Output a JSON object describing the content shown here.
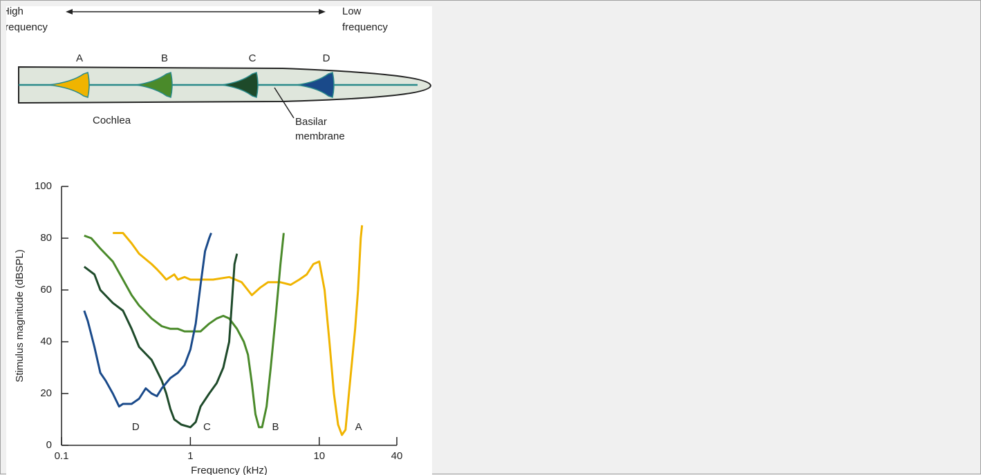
{
  "diagram": {
    "high_label": [
      "High",
      "frequency"
    ],
    "low_label": [
      "Low",
      "frequency"
    ],
    "positions": [
      "A",
      "B",
      "C",
      "D"
    ],
    "cochlea_label": "Cochlea",
    "membrane_label": [
      "Basilar",
      "membrane"
    ]
  },
  "chart_data": {
    "type": "line",
    "xlabel": "Frequency (kHz)",
    "ylabel": "Stimulus magnitude (dBSPL)",
    "xscale": "log",
    "xlim": [
      0.1,
      40
    ],
    "xticks": [
      0.1,
      1,
      10,
      40
    ],
    "ylim": [
      0,
      100
    ],
    "yticks": [
      0,
      20,
      40,
      60,
      80,
      100
    ],
    "series": [
      {
        "name": "A",
        "color": "#f0b400",
        "x": [
          0.25,
          0.3,
          0.35,
          0.4,
          0.5,
          0.55,
          0.6,
          0.65,
          0.75,
          0.8,
          0.9,
          1,
          1.5,
          2,
          2.5,
          3,
          3.5,
          4,
          5,
          6,
          7,
          8,
          9,
          10,
          11,
          12,
          13,
          14,
          15,
          16,
          17,
          19,
          20,
          21,
          21.5
        ],
        "values": [
          82,
          82,
          78,
          74,
          70,
          68,
          66,
          64,
          66,
          64,
          65,
          64,
          64,
          65,
          63,
          58,
          61,
          63,
          63,
          62,
          64,
          66,
          70,
          71,
          60,
          40,
          20,
          8,
          4,
          6,
          20,
          45,
          60,
          80,
          85
        ]
      },
      {
        "name": "B",
        "color": "#4a8a2a",
        "x": [
          0.15,
          0.17,
          0.2,
          0.25,
          0.3,
          0.35,
          0.4,
          0.5,
          0.6,
          0.7,
          0.8,
          0.9,
          1,
          1.2,
          1.4,
          1.6,
          1.8,
          2,
          2.3,
          2.6,
          2.8,
          3,
          3.2,
          3.4,
          3.6,
          3.9,
          4.2,
          4.6,
          5,
          5.3
        ],
        "values": [
          81,
          80,
          76,
          71,
          64,
          58,
          54,
          49,
          46,
          45,
          45,
          44,
          44,
          44,
          47,
          49,
          50,
          49,
          45,
          40,
          35,
          24,
          12,
          7,
          7,
          15,
          30,
          50,
          70,
          82
        ]
      },
      {
        "name": "C",
        "color": "#1e4a2a",
        "x": [
          0.15,
          0.18,
          0.2,
          0.25,
          0.3,
          0.35,
          0.4,
          0.5,
          0.6,
          0.65,
          0.7,
          0.75,
          0.85,
          1,
          1.1,
          1.2,
          1.4,
          1.6,
          1.8,
          2,
          2.1,
          2.2,
          2.3
        ],
        "values": [
          69,
          66,
          60,
          55,
          52,
          45,
          38,
          33,
          25,
          20,
          14,
          10,
          8,
          7,
          9,
          15,
          20,
          24,
          30,
          40,
          55,
          70,
          74
        ]
      },
      {
        "name": "D",
        "color": "#1a4a8a",
        "x": [
          0.15,
          0.16,
          0.18,
          0.2,
          0.22,
          0.25,
          0.28,
          0.3,
          0.35,
          0.4,
          0.45,
          0.5,
          0.55,
          0.6,
          0.7,
          0.8,
          0.9,
          1,
          1.1,
          1.2,
          1.3,
          1.4,
          1.45
        ],
        "values": [
          52,
          48,
          38,
          28,
          25,
          20,
          15,
          16,
          16,
          18,
          22,
          20,
          19,
          22,
          26,
          28,
          31,
          37,
          47,
          62,
          75,
          80,
          82
        ]
      }
    ]
  }
}
